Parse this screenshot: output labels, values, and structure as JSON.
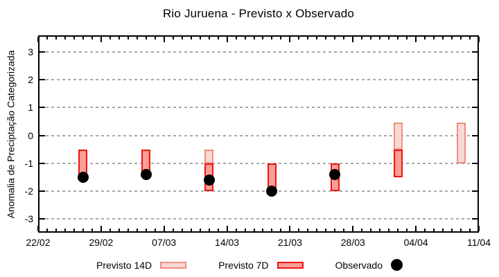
{
  "chart_data": {
    "type": "bar",
    "subtype": "range-bars-with-scatter",
    "title": "Rio Juruena - Previsto x Observado",
    "ylabel": "Anomalia de Preciptação Categorizada",
    "xlabel": "",
    "ylim": [
      -3.5,
      3.6
    ],
    "y_ticks": [
      3,
      2,
      1,
      0,
      -1,
      -2,
      -3
    ],
    "grid": {
      "on": true,
      "color": "#a8a8a8",
      "style": "dashed"
    },
    "x_axis": {
      "tick_labels": [
        "22/02",
        "29/02",
        "07/03",
        "14/03",
        "21/03",
        "28/03",
        "04/04",
        "11/04"
      ],
      "tick_interval_days": 7,
      "total_days": 49,
      "minor_tick_every_days": 1
    },
    "series": [
      {
        "name": "Previsto 14D",
        "type": "range_bar",
        "fill": "#f9d8d4",
        "border": "#ef8e7e",
        "bars": [
          {
            "day": 19,
            "date": "12/03",
            "high": -0.5,
            "low": -1.0
          },
          {
            "day": 40,
            "date": "02/04",
            "high": 0.45,
            "low": -0.5
          },
          {
            "day": 47,
            "date": "09/04",
            "high": 0.45,
            "low": -1.0
          }
        ]
      },
      {
        "name": "Previsto 7D",
        "type": "range_bar",
        "fill": "#fa9e96",
        "border": "#ee1411",
        "bars": [
          {
            "day": 5,
            "date": "27/02",
            "high": -0.5,
            "low": -1.4
          },
          {
            "day": 12,
            "date": "05/03",
            "high": -0.5,
            "low": -1.3
          },
          {
            "day": 19,
            "date": "12/03",
            "high": -1.0,
            "low": -2.0
          },
          {
            "day": 26,
            "date": "19/03",
            "high": -1.0,
            "low": -1.9
          },
          {
            "day": 33,
            "date": "26/03",
            "high": -1.0,
            "low": -2.0
          },
          {
            "day": 40,
            "date": "02/04",
            "high": -0.5,
            "low": -1.5
          }
        ]
      },
      {
        "name": "Observado",
        "type": "scatter",
        "color": "#000000",
        "points": [
          {
            "day": 5,
            "date": "27/02",
            "value": -1.5
          },
          {
            "day": 12,
            "date": "05/03",
            "value": -1.4
          },
          {
            "day": 19,
            "date": "12/03",
            "value": -1.6
          },
          {
            "day": 26,
            "date": "19/03",
            "value": -2.0
          },
          {
            "day": 33,
            "date": "26/03",
            "value": -1.4
          }
        ]
      }
    ],
    "legend": {
      "position": "bottom",
      "items": [
        "Previsto 14D",
        "Previsto 7D",
        "Observado"
      ]
    }
  }
}
